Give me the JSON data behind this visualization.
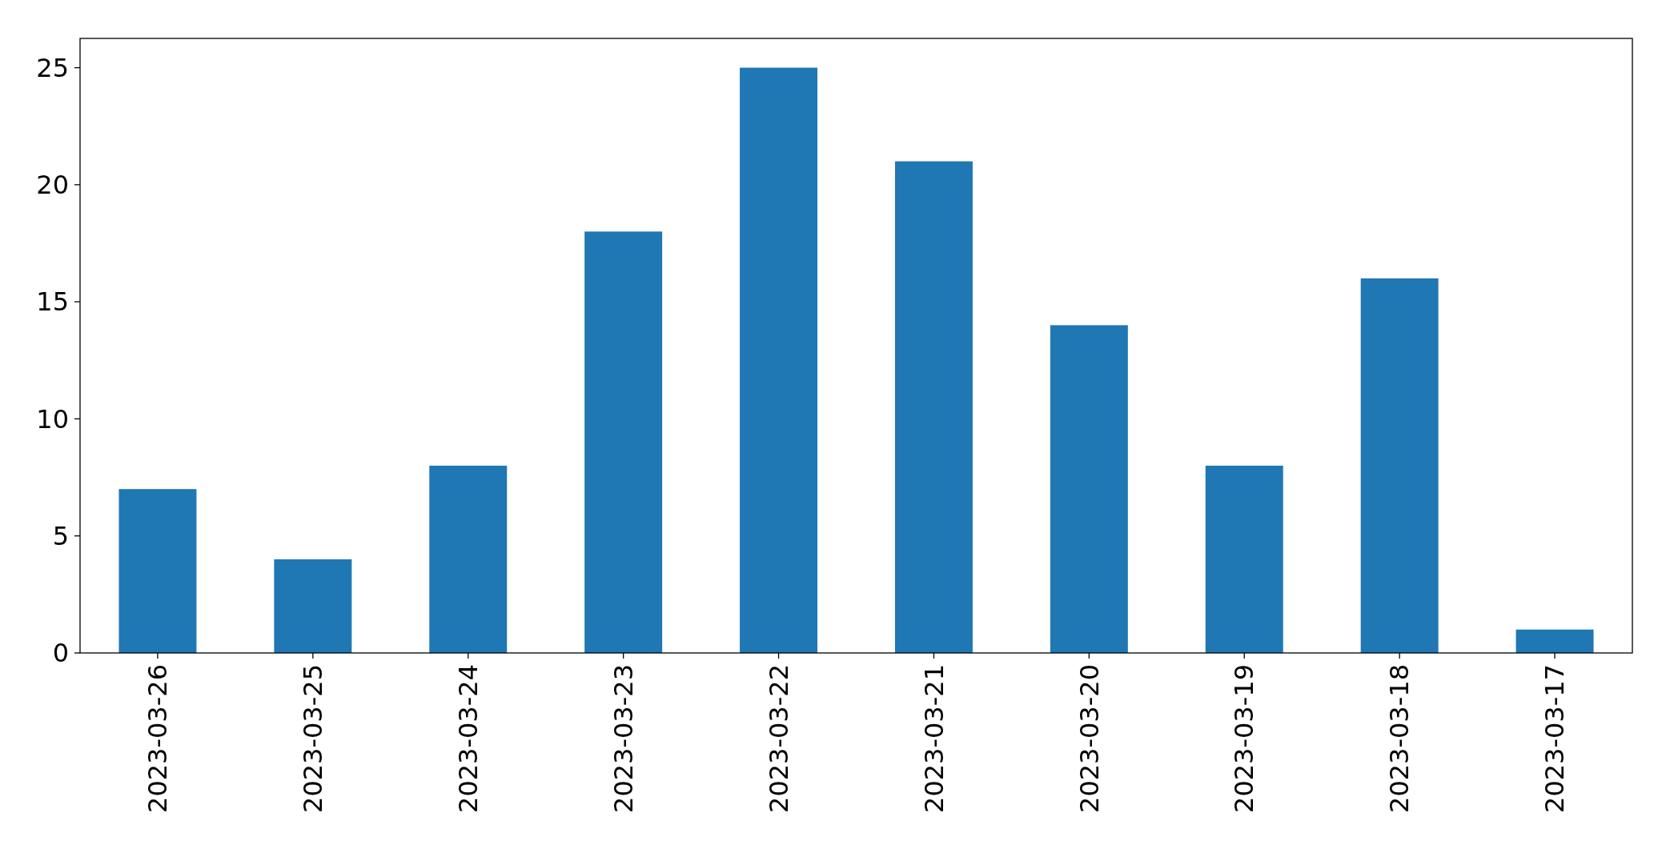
{
  "chart_data": {
    "type": "bar",
    "categories": [
      "2023-03-26",
      "2023-03-25",
      "2023-03-24",
      "2023-03-23",
      "2023-03-22",
      "2023-03-21",
      "2023-03-20",
      "2023-03-19",
      "2023-03-18",
      "2023-03-17"
    ],
    "values": [
      7,
      4,
      8,
      18,
      25,
      21,
      14,
      8,
      16,
      1
    ],
    "color": "#1f77b4",
    "ylim": [
      0,
      26.25
    ],
    "yticks": [
      0,
      5,
      10,
      15,
      20,
      25
    ],
    "grid": false
  }
}
